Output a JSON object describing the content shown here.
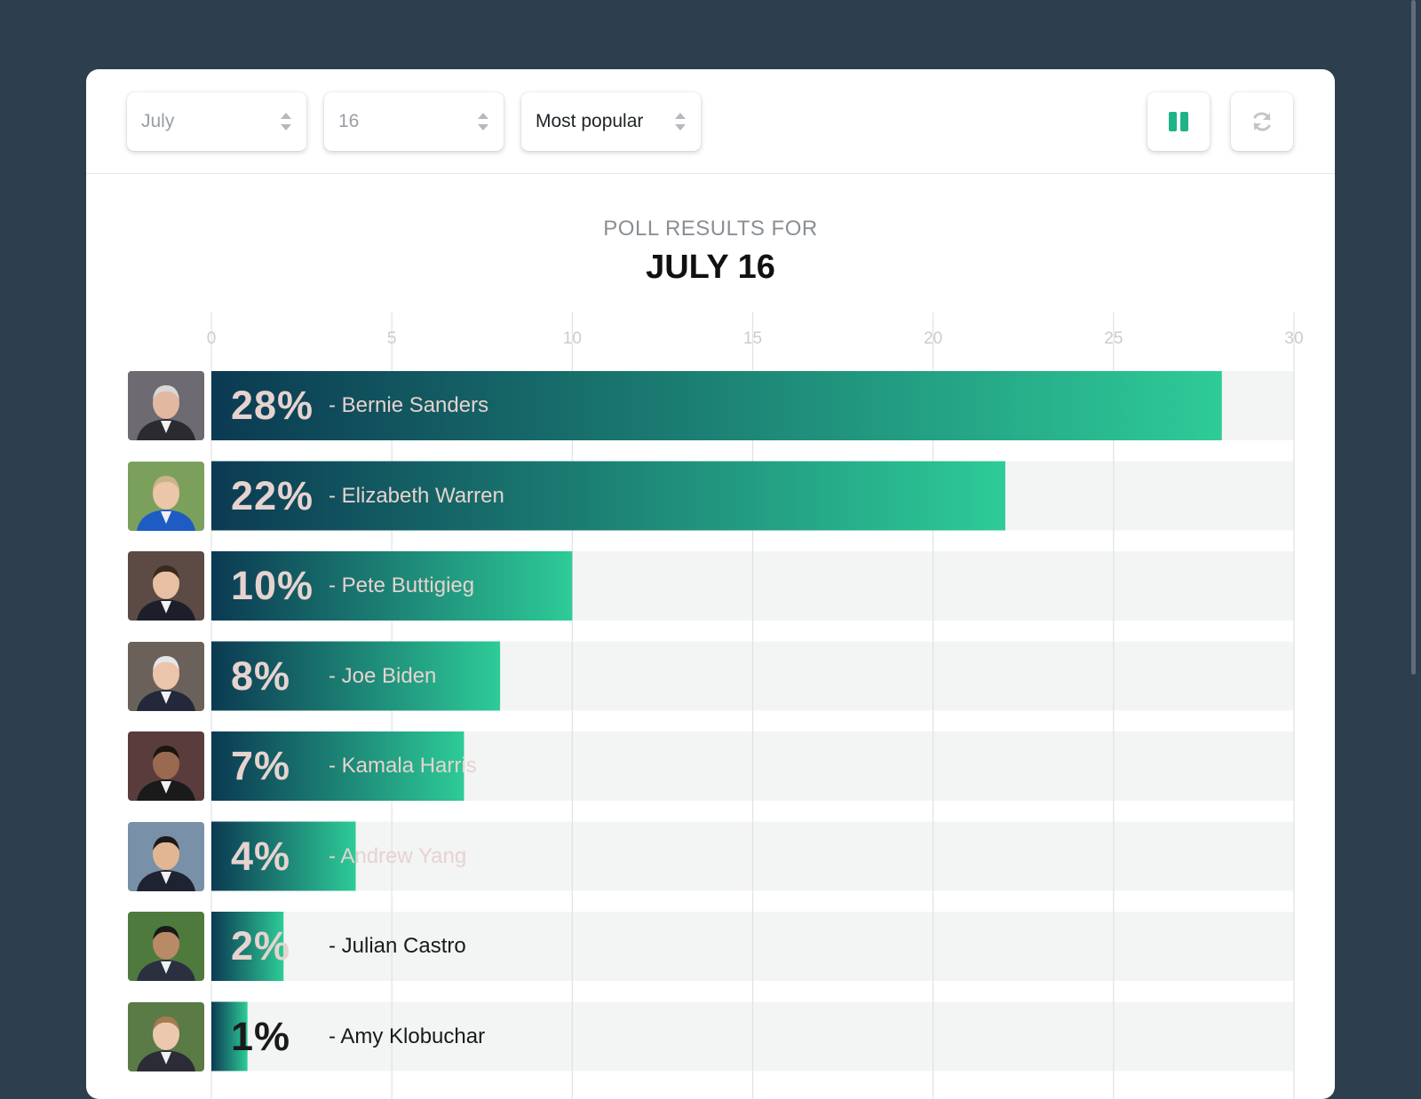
{
  "toolbar": {
    "month": "July",
    "day": "16",
    "sort": "Most popular"
  },
  "header": {
    "subtitle": "POLL RESULTS FOR",
    "title": "JULY 16"
  },
  "colors": {
    "bar_start": "#0b3a52",
    "bar_end": "#2ecb98",
    "track": "#f3f4f4",
    "accent": "#1fb488"
  },
  "chart_data": {
    "type": "bar",
    "orientation": "horizontal",
    "title": "JULY 16",
    "subtitle": "POLL RESULTS FOR",
    "xlim": [
      0,
      30
    ],
    "xticks": [
      0,
      5,
      10,
      15,
      20,
      25,
      30
    ],
    "grid": true,
    "categories": [
      "Bernie Sanders",
      "Elizabeth Warren",
      "Pete Buttigieg",
      "Joe Biden",
      "Kamala Harris",
      "Andrew Yang",
      "Julian Castro",
      "Amy Klobuchar"
    ],
    "values": [
      28,
      22,
      10,
      8,
      7,
      4,
      2,
      1
    ],
    "value_labels": [
      "28%",
      "22%",
      "10%",
      "8%",
      "7%",
      "4%",
      "2%",
      "1%"
    ],
    "name_labels": [
      "- Bernie Sanders",
      "- Elizabeth Warren",
      "- Pete Buttigieg",
      "- Joe Biden",
      "- Kamala Harris",
      "- Andrew Yang",
      "- Julian Castro",
      "- Amy Klobuchar"
    ],
    "unit": "%"
  }
}
